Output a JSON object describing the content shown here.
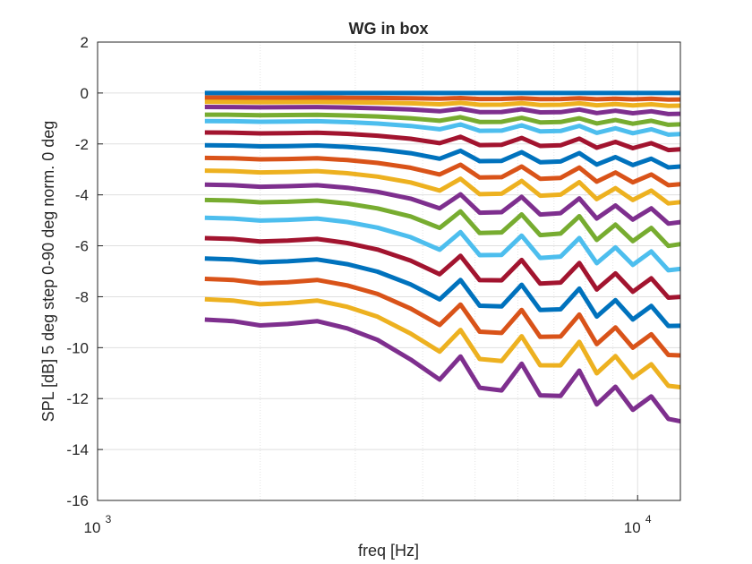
{
  "chart_data": {
    "type": "line",
    "title": "WG in box",
    "xlabel": "freq [Hz]",
    "ylabel": "SPL [dB] 5 deg step 0-90 deg norm. 0 deg",
    "xscale": "log",
    "xlim": [
      1000,
      12000
    ],
    "ylim": [
      -16,
      2
    ],
    "grid": true,
    "xticks": [
      {
        "value": 1000,
        "base": "10",
        "exp": "3"
      },
      {
        "value": 10000,
        "base": "10",
        "exp": "4"
      }
    ],
    "yticks": [
      2,
      0,
      -2,
      -4,
      -6,
      -8,
      -10,
      -12,
      -14,
      -16
    ],
    "colors": [
      "#0072BD",
      "#D95319",
      "#EDB120",
      "#7E2F8E",
      "#77AC30",
      "#4DBEEE",
      "#A2142F"
    ],
    "x": [
      1580,
      1780,
      2000,
      2250,
      2550,
      2900,
      3300,
      3800,
      4300,
      4700,
      5100,
      5600,
      6100,
      6600,
      7200,
      7800,
      8400,
      9100,
      9800,
      10600,
      11400,
      12000
    ],
    "shape": [
      0,
      -0.02,
      -0.08,
      -0.06,
      -0.02,
      -0.12,
      -0.28,
      -0.55,
      -0.75,
      -0.6,
      -0.82,
      -0.9,
      -0.7,
      -0.95,
      -1.0,
      -0.82,
      -1.05,
      -1.0,
      -1.15,
      -1.15,
      -1.25,
      -1.35
    ],
    "osc": [
      0,
      0,
      0,
      0,
      0,
      0,
      0,
      0,
      -0.18,
      0.22,
      -0.28,
      -0.18,
      0.22,
      -0.22,
      -0.12,
      0.28,
      -0.28,
      0.18,
      -0.22,
      0.22,
      -0.28,
      -0.12
    ],
    "series": [
      {
        "offset": 0.0,
        "scale": 0.0
      },
      {
        "offset": -0.18,
        "scale": 0.05
      },
      {
        "offset": -0.35,
        "scale": 0.1
      },
      {
        "offset": -0.55,
        "scale": 0.18
      },
      {
        "offset": -0.85,
        "scale": 0.26
      },
      {
        "offset": -1.1,
        "scale": 0.35
      },
      {
        "offset": -1.55,
        "scale": 0.45
      },
      {
        "offset": -2.05,
        "scale": 0.57
      },
      {
        "offset": -2.55,
        "scale": 0.7
      },
      {
        "offset": -3.05,
        "scale": 0.84
      },
      {
        "offset": -3.6,
        "scale": 1.0
      },
      {
        "offset": -4.2,
        "scale": 1.18
      },
      {
        "offset": -4.9,
        "scale": 1.38
      },
      {
        "offset": -5.7,
        "scale": 1.6
      },
      {
        "offset": -6.5,
        "scale": 1.85
      },
      {
        "offset": -7.3,
        "scale": 2.12
      },
      {
        "offset": -8.1,
        "scale": 2.45
      },
      {
        "offset": -8.9,
        "scale": 2.85
      }
    ]
  }
}
